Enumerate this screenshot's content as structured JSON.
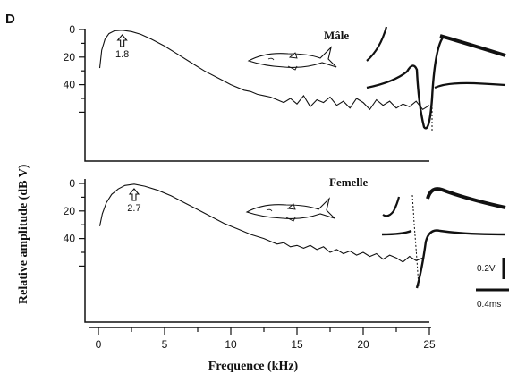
{
  "panel_label": "D",
  "chart_data": [
    {
      "type": "line",
      "label": "Mâle",
      "ylabel": "Relative amplitude (dB V)",
      "xlabel": "Frequence (kHz)",
      "x_ticks": [
        0,
        5,
        10,
        15,
        20,
        25
      ],
      "y_ticks": [
        0,
        20,
        40
      ],
      "xlim": [
        0,
        25
      ],
      "ylim": [
        0,
        60
      ],
      "y_inverted": true,
      "peak": {
        "x": 1.8,
        "label": "1.8"
      },
      "x": [
        0.1,
        0.25,
        0.5,
        0.8,
        1.2,
        1.8,
        2.5,
        3.2,
        4,
        5,
        6,
        7,
        8,
        9,
        10,
        11,
        11.5,
        12,
        12.5,
        13,
        13.5,
        14,
        14.5,
        15,
        15.5,
        16,
        16.5,
        17,
        17.5,
        18,
        18.5,
        19,
        19.5,
        20,
        20.5,
        21,
        21.5,
        22,
        22.5,
        23,
        23.5,
        24,
        24.5,
        25
      ],
      "values": [
        28,
        15,
        7,
        3,
        1,
        0.5,
        1.5,
        3.5,
        7,
        12,
        18,
        24,
        30,
        35,
        40,
        44,
        45,
        47,
        48,
        49,
        51,
        53,
        50,
        54,
        48,
        56,
        51,
        53,
        49,
        55,
        52,
        57,
        50,
        53,
        58,
        51,
        55,
        52,
        57,
        54,
        56,
        52,
        58,
        55
      ]
    },
    {
      "type": "line",
      "label": "Femelle",
      "ylabel": "",
      "xlabel": "Frequence (kHz)",
      "x_ticks": [
        0,
        5,
        10,
        15,
        20,
        25
      ],
      "y_ticks": [
        0,
        20,
        40
      ],
      "xlim": [
        0,
        25
      ],
      "ylim": [
        0,
        60
      ],
      "y_inverted": true,
      "peak": {
        "x": 2.7,
        "label": "2.7"
      },
      "x": [
        0.1,
        0.3,
        0.6,
        1,
        1.5,
        2,
        2.7,
        3.5,
        4.5,
        5.5,
        6.5,
        7.5,
        8.5,
        9.5,
        10.5,
        11.5,
        12.5,
        13,
        13.5,
        14,
        14.5,
        15,
        15.5,
        16,
        16.5,
        17,
        17.5,
        18,
        18.5,
        19,
        19.5,
        20,
        20.5,
        21,
        21.5,
        22,
        22.5,
        23,
        23.5,
        24,
        24.5
      ],
      "values": [
        31,
        22,
        14,
        8,
        4,
        1.5,
        0.5,
        2,
        5,
        9,
        14,
        19,
        24,
        29,
        33,
        37,
        40,
        42,
        44,
        43,
        46,
        45,
        47,
        45,
        48,
        46,
        50,
        48,
        51,
        49,
        52,
        50,
        53,
        51,
        55,
        52,
        54,
        57,
        53,
        56,
        54
      ]
    }
  ],
  "scale_bar": {
    "voltage": "0.2V",
    "time": "0.4ms"
  }
}
